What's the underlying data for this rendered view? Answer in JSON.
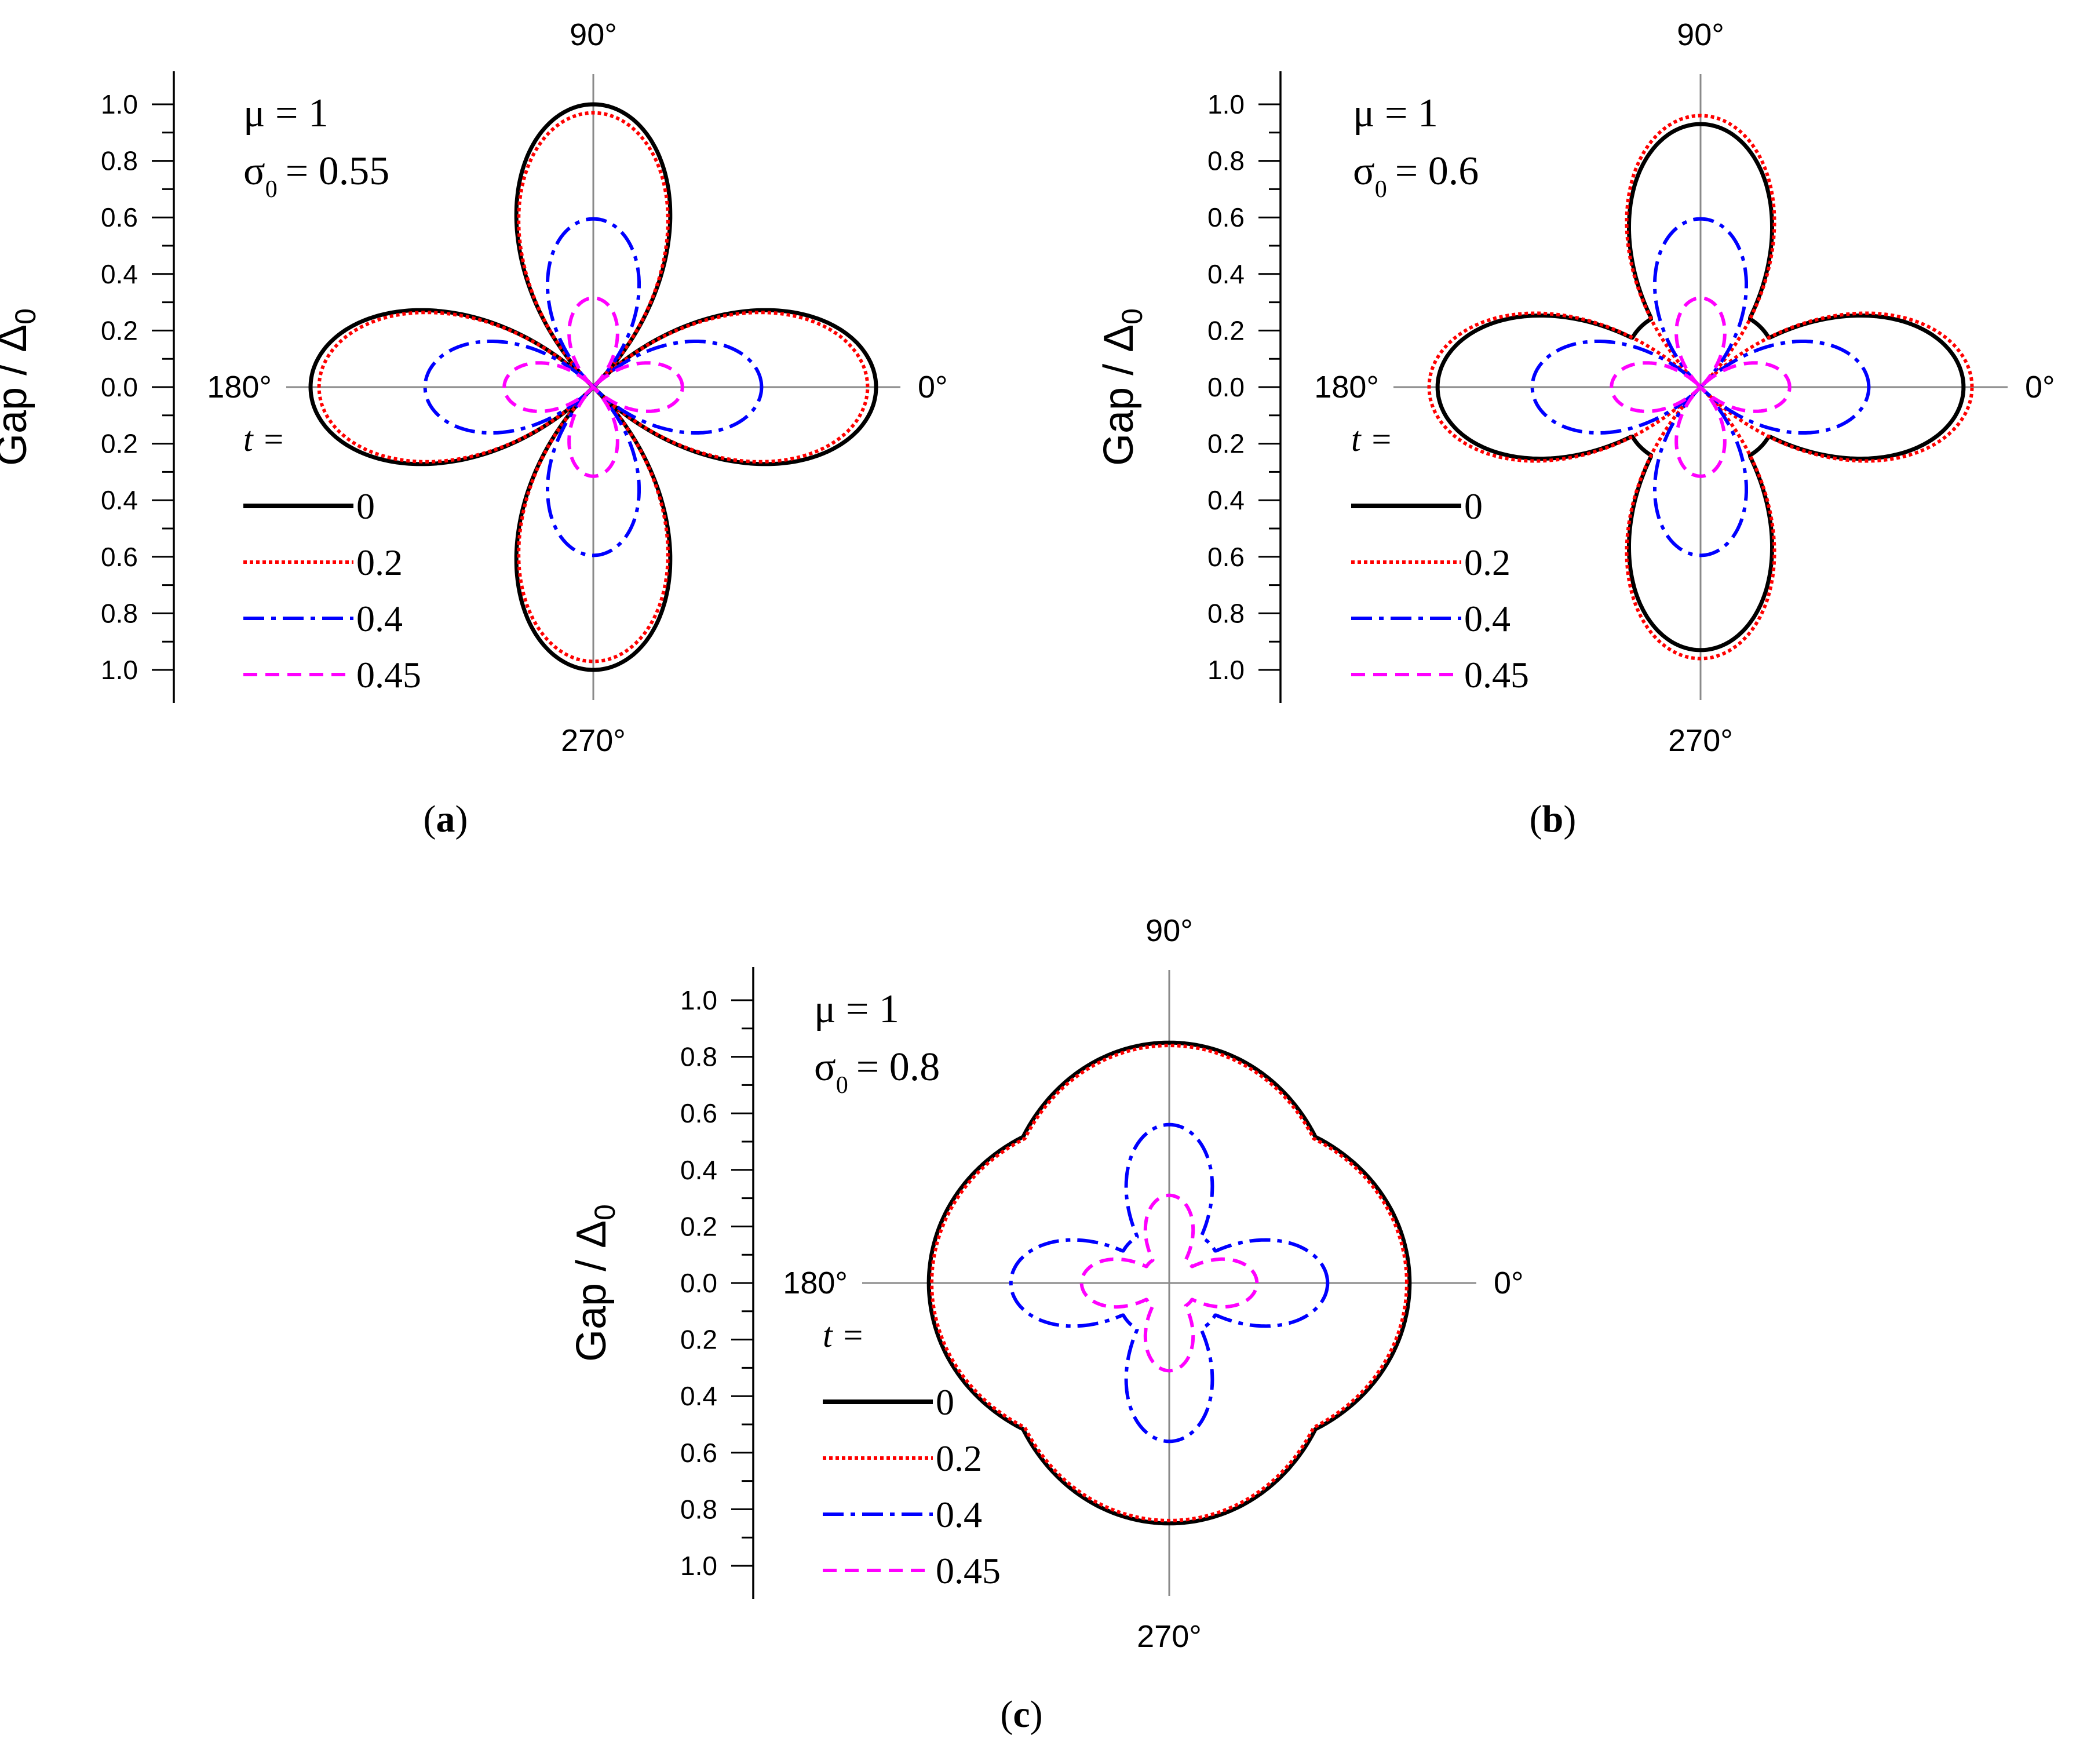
{
  "chart_data": [
    {
      "type": "polar-line",
      "panel_label": "a",
      "ylabel": "Gap / Δ",
      "ylabel_sub": "0",
      "axis_ticks": [
        "1.0",
        "0.8",
        "0.6",
        "0.4",
        "0.2",
        "0.0",
        "0.2",
        "0.4",
        "0.6",
        "0.8",
        "1.0"
      ],
      "angle_labels": {
        "right": "0°",
        "top": "90°",
        "left": "180°",
        "bottom": "270°"
      },
      "param_mu": "μ = 1",
      "param_sigma_sym": "σ",
      "param_sigma_sub": "0",
      "param_sigma_val": "= 0.55",
      "legend_title": "t =",
      "model": {
        "form": "|A·cos(2φ) + C|",
        "ylim": [
          0,
          1
        ]
      },
      "series": [
        {
          "name": "0",
          "A": 1.0,
          "C": 0.0,
          "color": "#000000",
          "dash": "solid"
        },
        {
          "name": "0.2",
          "A": 0.97,
          "C": 0.0,
          "color": "#ff0000",
          "dash": "dotted"
        },
        {
          "name": "0.4",
          "A": 0.595,
          "C": 0.0,
          "color": "#0000ff",
          "dash": "dashdot"
        },
        {
          "name": "0.45",
          "A": 0.315,
          "C": 0.0,
          "color": "#ff00ff",
          "dash": "dashed"
        }
      ]
    },
    {
      "type": "polar-line",
      "panel_label": "b",
      "ylabel": "Gap / Δ",
      "ylabel_sub": "0",
      "axis_ticks": [
        "1.0",
        "0.8",
        "0.6",
        "0.4",
        "0.2",
        "0.0",
        "0.2",
        "0.4",
        "0.6",
        "0.8",
        "1.0"
      ],
      "angle_labels": {
        "right": "0°",
        "top": "90°",
        "left": "180°",
        "bottom": "270°"
      },
      "param_mu": "μ = 1",
      "param_sigma_sym": "σ",
      "param_sigma_sub": "0",
      "param_sigma_val": "= 0.6",
      "legend_title": "t =",
      "model": {
        "form": "|A·cos(2φ) + C|",
        "ylim": [
          0,
          1
        ]
      },
      "series": [
        {
          "name": "0",
          "A": 0.93,
          "C": 0.0,
          "flat": 0.3,
          "color": "#000000",
          "dash": "solid"
        },
        {
          "name": "0.2",
          "A": 0.96,
          "C": 0.0,
          "color": "#ff0000",
          "dash": "dotted"
        },
        {
          "name": "0.4",
          "A": 0.595,
          "C": 0.0,
          "color": "#0000ff",
          "dash": "dashdot"
        },
        {
          "name": "0.45",
          "A": 0.315,
          "C": 0.0,
          "color": "#ff00ff",
          "dash": "dashed"
        }
      ]
    },
    {
      "type": "polar-line",
      "panel_label": "c",
      "ylabel": "Gap / Δ",
      "ylabel_sub": "0",
      "axis_ticks": [
        "1.0",
        "0.8",
        "0.6",
        "0.4",
        "0.2",
        "0.0",
        "0.2",
        "0.4",
        "0.6",
        "0.8",
        "1.0"
      ],
      "angle_labels": {
        "right": "0°",
        "top": "90°",
        "left": "180°",
        "bottom": "270°"
      },
      "param_mu": "μ = 1",
      "param_sigma_sym": "σ",
      "param_sigma_sub": "0",
      "param_sigma_val": "= 0.8",
      "legend_title": "t =",
      "model": {
        "form": "|A·cos(2φ) + C|",
        "ylim": [
          0,
          1
        ]
      },
      "series": [
        {
          "name": "0",
          "A": 0.85,
          "C": 0.0,
          "round": 0.7,
          "color": "#000000",
          "dash": "solid"
        },
        {
          "name": "0.2",
          "A": 0.84,
          "C": 0.0,
          "round": 0.7,
          "color": "#ff0000",
          "dash": "dotted"
        },
        {
          "name": "0.4",
          "A": 0.56,
          "C": 0.0,
          "flat": 0.2,
          "color": "#0000ff",
          "dash": "dashdot"
        },
        {
          "name": "0.45",
          "A": 0.31,
          "C": 0.0,
          "flat": 0.1,
          "color": "#ff00ff",
          "dash": "dashed"
        }
      ]
    }
  ]
}
